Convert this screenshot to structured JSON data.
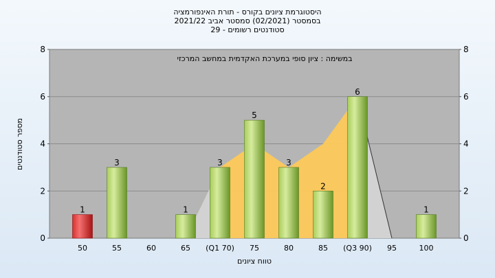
{
  "chart_data": {
    "type": "bar",
    "title_lines": [
      "היסטוגרמת ציונים בקורס - תורת האינפורמציה",
      "בסמסטר  (02/2021)  סמסטר אביב 2021/22",
      "סטודנטים רשומים - 29"
    ],
    "subtitle": "במשימה : ציון סופי במערכת האקדמית במחשב המרכזי",
    "xlabel": "טווח ציונים",
    "ylabel": "מספר סטודנטים",
    "ylim": [
      0,
      8
    ],
    "yticks": [
      0,
      2,
      4,
      6,
      8
    ],
    "grid": true,
    "categories": [
      "50",
      "55",
      "60",
      "65",
      "(Q1 70)",
      "75",
      "80",
      "85",
      "(Q3 90)",
      "95",
      "100"
    ],
    "values": [
      1,
      3,
      0,
      1,
      3,
      5,
      3,
      2,
      6,
      0,
      1
    ],
    "data_labels": [
      "1",
      "3",
      "",
      "1",
      "3",
      "5",
      "3",
      "2",
      "6",
      "",
      "1"
    ],
    "area_values": [
      null,
      null,
      null,
      0,
      3,
      4,
      3,
      4,
      6,
      0,
      null
    ],
    "colors": {
      "plot_bg": "#b5b5b5",
      "bar_green_light": "#cfe79a",
      "bar_green_dark": "#6f9a2c",
      "bar_red_light": "#f26060",
      "bar_red_dark": "#b01818",
      "area_yellow": "#fdc95a",
      "grid": "#8c8c8c"
    }
  }
}
